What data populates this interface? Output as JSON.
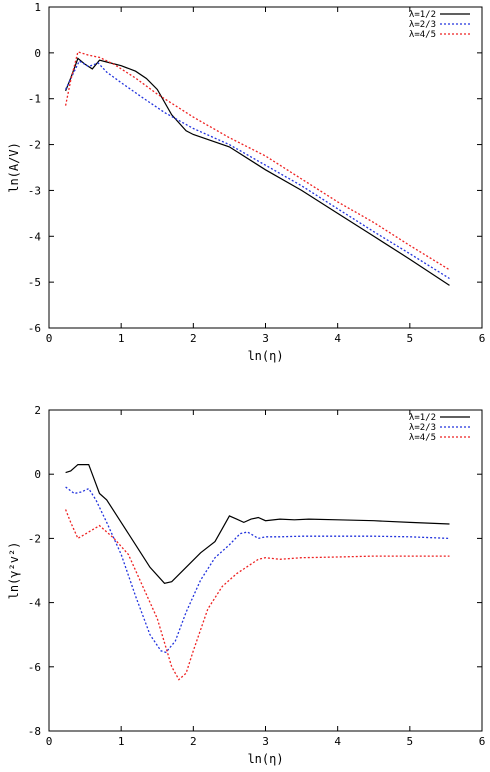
{
  "chart_data": [
    {
      "type": "line",
      "xlabel": "ln(η)",
      "ylabel": "ln(A/V)",
      "xlim": [
        0,
        6
      ],
      "ylim": [
        -6,
        1
      ],
      "xticks": [
        0,
        1,
        2,
        3,
        4,
        5,
        6
      ],
      "yticks": [
        1,
        0,
        -1,
        -2,
        -3,
        -4,
        -5,
        -6
      ],
      "grid": false,
      "legend_position": "top-right",
      "series": [
        {
          "name": "λ=1/2",
          "color": "#000000",
          "dash": "solid",
          "points": [
            [
              0.23,
              -0.83
            ],
            [
              0.3,
              -0.55
            ],
            [
              0.4,
              -0.12
            ],
            [
              0.5,
              -0.25
            ],
            [
              0.6,
              -0.35
            ],
            [
              0.7,
              -0.16
            ],
            [
              0.8,
              -0.2
            ],
            [
              1.0,
              -0.28
            ],
            [
              1.2,
              -0.4
            ],
            [
              1.35,
              -0.56
            ],
            [
              1.5,
              -0.8
            ],
            [
              1.7,
              -1.35
            ],
            [
              1.9,
              -1.7
            ],
            [
              2.0,
              -1.78
            ],
            [
              2.5,
              -2.05
            ],
            [
              3.0,
              -2.55
            ],
            [
              3.5,
              -3.0
            ],
            [
              4.0,
              -3.5
            ],
            [
              4.5,
              -4.0
            ],
            [
              5.0,
              -4.5
            ],
            [
              5.55,
              -5.07
            ]
          ]
        },
        {
          "name": "λ=2/3",
          "color": "#2233dd",
          "dash": "dotted",
          "points": [
            [
              0.23,
              -0.8
            ],
            [
              0.32,
              -0.5
            ],
            [
              0.42,
              -0.18
            ],
            [
              0.55,
              -0.3
            ],
            [
              0.68,
              -0.22
            ],
            [
              0.8,
              -0.42
            ],
            [
              1.0,
              -0.65
            ],
            [
              1.3,
              -0.98
            ],
            [
              1.6,
              -1.3
            ],
            [
              2.0,
              -1.65
            ],
            [
              2.5,
              -2.0
            ],
            [
              3.0,
              -2.45
            ],
            [
              3.5,
              -2.9
            ],
            [
              4.0,
              -3.4
            ],
            [
              4.5,
              -3.9
            ],
            [
              5.0,
              -4.38
            ],
            [
              5.55,
              -4.92
            ]
          ]
        },
        {
          "name": "λ=4/5",
          "color": "#ee2222",
          "dash": "dotted",
          "points": [
            [
              0.23,
              -1.15
            ],
            [
              0.3,
              -0.6
            ],
            [
              0.4,
              0.02
            ],
            [
              0.55,
              -0.05
            ],
            [
              0.7,
              -0.1
            ],
            [
              0.9,
              -0.25
            ],
            [
              1.2,
              -0.55
            ],
            [
              1.5,
              -0.9
            ],
            [
              2.0,
              -1.4
            ],
            [
              2.5,
              -1.85
            ],
            [
              3.0,
              -2.25
            ],
            [
              3.5,
              -2.75
            ],
            [
              4.0,
              -3.25
            ],
            [
              4.5,
              -3.7
            ],
            [
              5.0,
              -4.2
            ],
            [
              5.55,
              -4.73
            ]
          ]
        }
      ]
    },
    {
      "type": "line",
      "xlabel": "ln(η)",
      "ylabel": "ln(γ²v²)",
      "xlim": [
        0,
        6
      ],
      "ylim": [
        -8,
        2
      ],
      "xticks": [
        0,
        1,
        2,
        3,
        4,
        5,
        6
      ],
      "yticks": [
        2,
        0,
        -2,
        -4,
        -6,
        -8
      ],
      "grid": false,
      "legend_position": "top-right",
      "series": [
        {
          "name": "λ=1/2",
          "color": "#000000",
          "dash": "solid",
          "points": [
            [
              0.23,
              0.05
            ],
            [
              0.3,
              0.1
            ],
            [
              0.4,
              0.3
            ],
            [
              0.55,
              0.3
            ],
            [
              0.6,
              0.0
            ],
            [
              0.7,
              -0.6
            ],
            [
              0.8,
              -0.8
            ],
            [
              1.0,
              -1.5
            ],
            [
              1.2,
              -2.2
            ],
            [
              1.4,
              -2.9
            ],
            [
              1.6,
              -3.4
            ],
            [
              1.7,
              -3.35
            ],
            [
              1.9,
              -2.9
            ],
            [
              2.1,
              -2.45
            ],
            [
              2.3,
              -2.1
            ],
            [
              2.4,
              -1.7
            ],
            [
              2.5,
              -1.3
            ],
            [
              2.6,
              -1.4
            ],
            [
              2.7,
              -1.5
            ],
            [
              2.8,
              -1.4
            ],
            [
              2.9,
              -1.35
            ],
            [
              3.0,
              -1.45
            ],
            [
              3.2,
              -1.4
            ],
            [
              3.4,
              -1.42
            ],
            [
              3.6,
              -1.4
            ],
            [
              4.0,
              -1.42
            ],
            [
              4.5,
              -1.45
            ],
            [
              5.0,
              -1.5
            ],
            [
              5.55,
              -1.55
            ]
          ]
        },
        {
          "name": "λ=2/3",
          "color": "#2233dd",
          "dash": "dotted",
          "points": [
            [
              0.23,
              -0.4
            ],
            [
              0.35,
              -0.6
            ],
            [
              0.45,
              -0.55
            ],
            [
              0.55,
              -0.45
            ],
            [
              0.65,
              -0.8
            ],
            [
              0.8,
              -1.5
            ],
            [
              1.0,
              -2.5
            ],
            [
              1.2,
              -3.8
            ],
            [
              1.4,
              -5.0
            ],
            [
              1.55,
              -5.5
            ],
            [
              1.62,
              -5.55
            ],
            [
              1.75,
              -5.2
            ],
            [
              1.9,
              -4.3
            ],
            [
              2.1,
              -3.3
            ],
            [
              2.3,
              -2.6
            ],
            [
              2.5,
              -2.2
            ],
            [
              2.65,
              -1.85
            ],
            [
              2.75,
              -1.8
            ],
            [
              2.9,
              -2.0
            ],
            [
              3.0,
              -1.95
            ],
            [
              3.2,
              -1.95
            ],
            [
              3.5,
              -1.93
            ],
            [
              4.0,
              -1.93
            ],
            [
              4.5,
              -1.93
            ],
            [
              5.0,
              -1.95
            ],
            [
              5.55,
              -2.0
            ]
          ]
        },
        {
          "name": "λ=4/5",
          "color": "#ee2222",
          "dash": "dotted",
          "points": [
            [
              0.23,
              -1.1
            ],
            [
              0.3,
              -1.5
            ],
            [
              0.4,
              -2.0
            ],
            [
              0.55,
              -1.8
            ],
            [
              0.7,
              -1.6
            ],
            [
              0.9,
              -2.0
            ],
            [
              1.1,
              -2.5
            ],
            [
              1.3,
              -3.5
            ],
            [
              1.5,
              -4.5
            ],
            [
              1.7,
              -6.0
            ],
            [
              1.8,
              -6.4
            ],
            [
              1.9,
              -6.2
            ],
            [
              2.0,
              -5.5
            ],
            [
              2.2,
              -4.2
            ],
            [
              2.4,
              -3.5
            ],
            [
              2.6,
              -3.1
            ],
            [
              2.8,
              -2.8
            ],
            [
              2.9,
              -2.65
            ],
            [
              3.0,
              -2.6
            ],
            [
              3.2,
              -2.65
            ],
            [
              3.5,
              -2.6
            ],
            [
              4.0,
              -2.58
            ],
            [
              4.5,
              -2.55
            ],
            [
              5.0,
              -2.55
            ],
            [
              5.55,
              -2.55
            ]
          ]
        }
      ]
    }
  ]
}
